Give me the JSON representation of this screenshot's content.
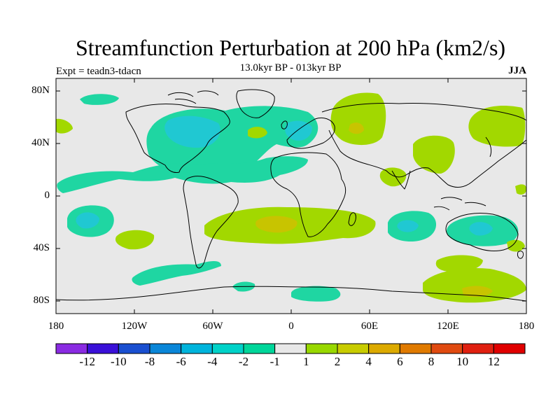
{
  "title": "Streamfunction Perturbation at 200 hPa (km2/s)",
  "subtitle": "13.0kyr BP - 013kyr BP",
  "left_label": "Expt = teadn3-tdacn",
  "right_label": "JJA",
  "map": {
    "lat_ticks": [
      "80N",
      "40N",
      "0",
      "40S",
      "80S"
    ],
    "lon_ticks": [
      "180",
      "120W",
      "60W",
      "0",
      "60E",
      "120E",
      "180"
    ],
    "lat_range": [
      -90,
      90
    ],
    "lon_range": [
      -180,
      180
    ]
  },
  "colorbar": {
    "labels": [
      "-12",
      "-10",
      "-8",
      "-6",
      "-4",
      "-2",
      "-1",
      "1",
      "2",
      "4",
      "6",
      "8",
      "10",
      "12"
    ],
    "colors": [
      "#8a2be2",
      "#3a10d8",
      "#1a4fd0",
      "#0a86d8",
      "#00b4dc",
      "#00d2c8",
      "#00d69a",
      "#e8e8e8",
      "#98d800",
      "#c8cc00",
      "#dcaa00",
      "#e07a00",
      "#e04a10",
      "#e02010",
      "#e00000"
    ]
  },
  "colors": {
    "background": "#e8e8e8",
    "neg_light": "#1fd6a2",
    "neg_mid": "#20c8d2",
    "pos_light": "#a2d800",
    "pos_mid": "#c8c400"
  }
}
